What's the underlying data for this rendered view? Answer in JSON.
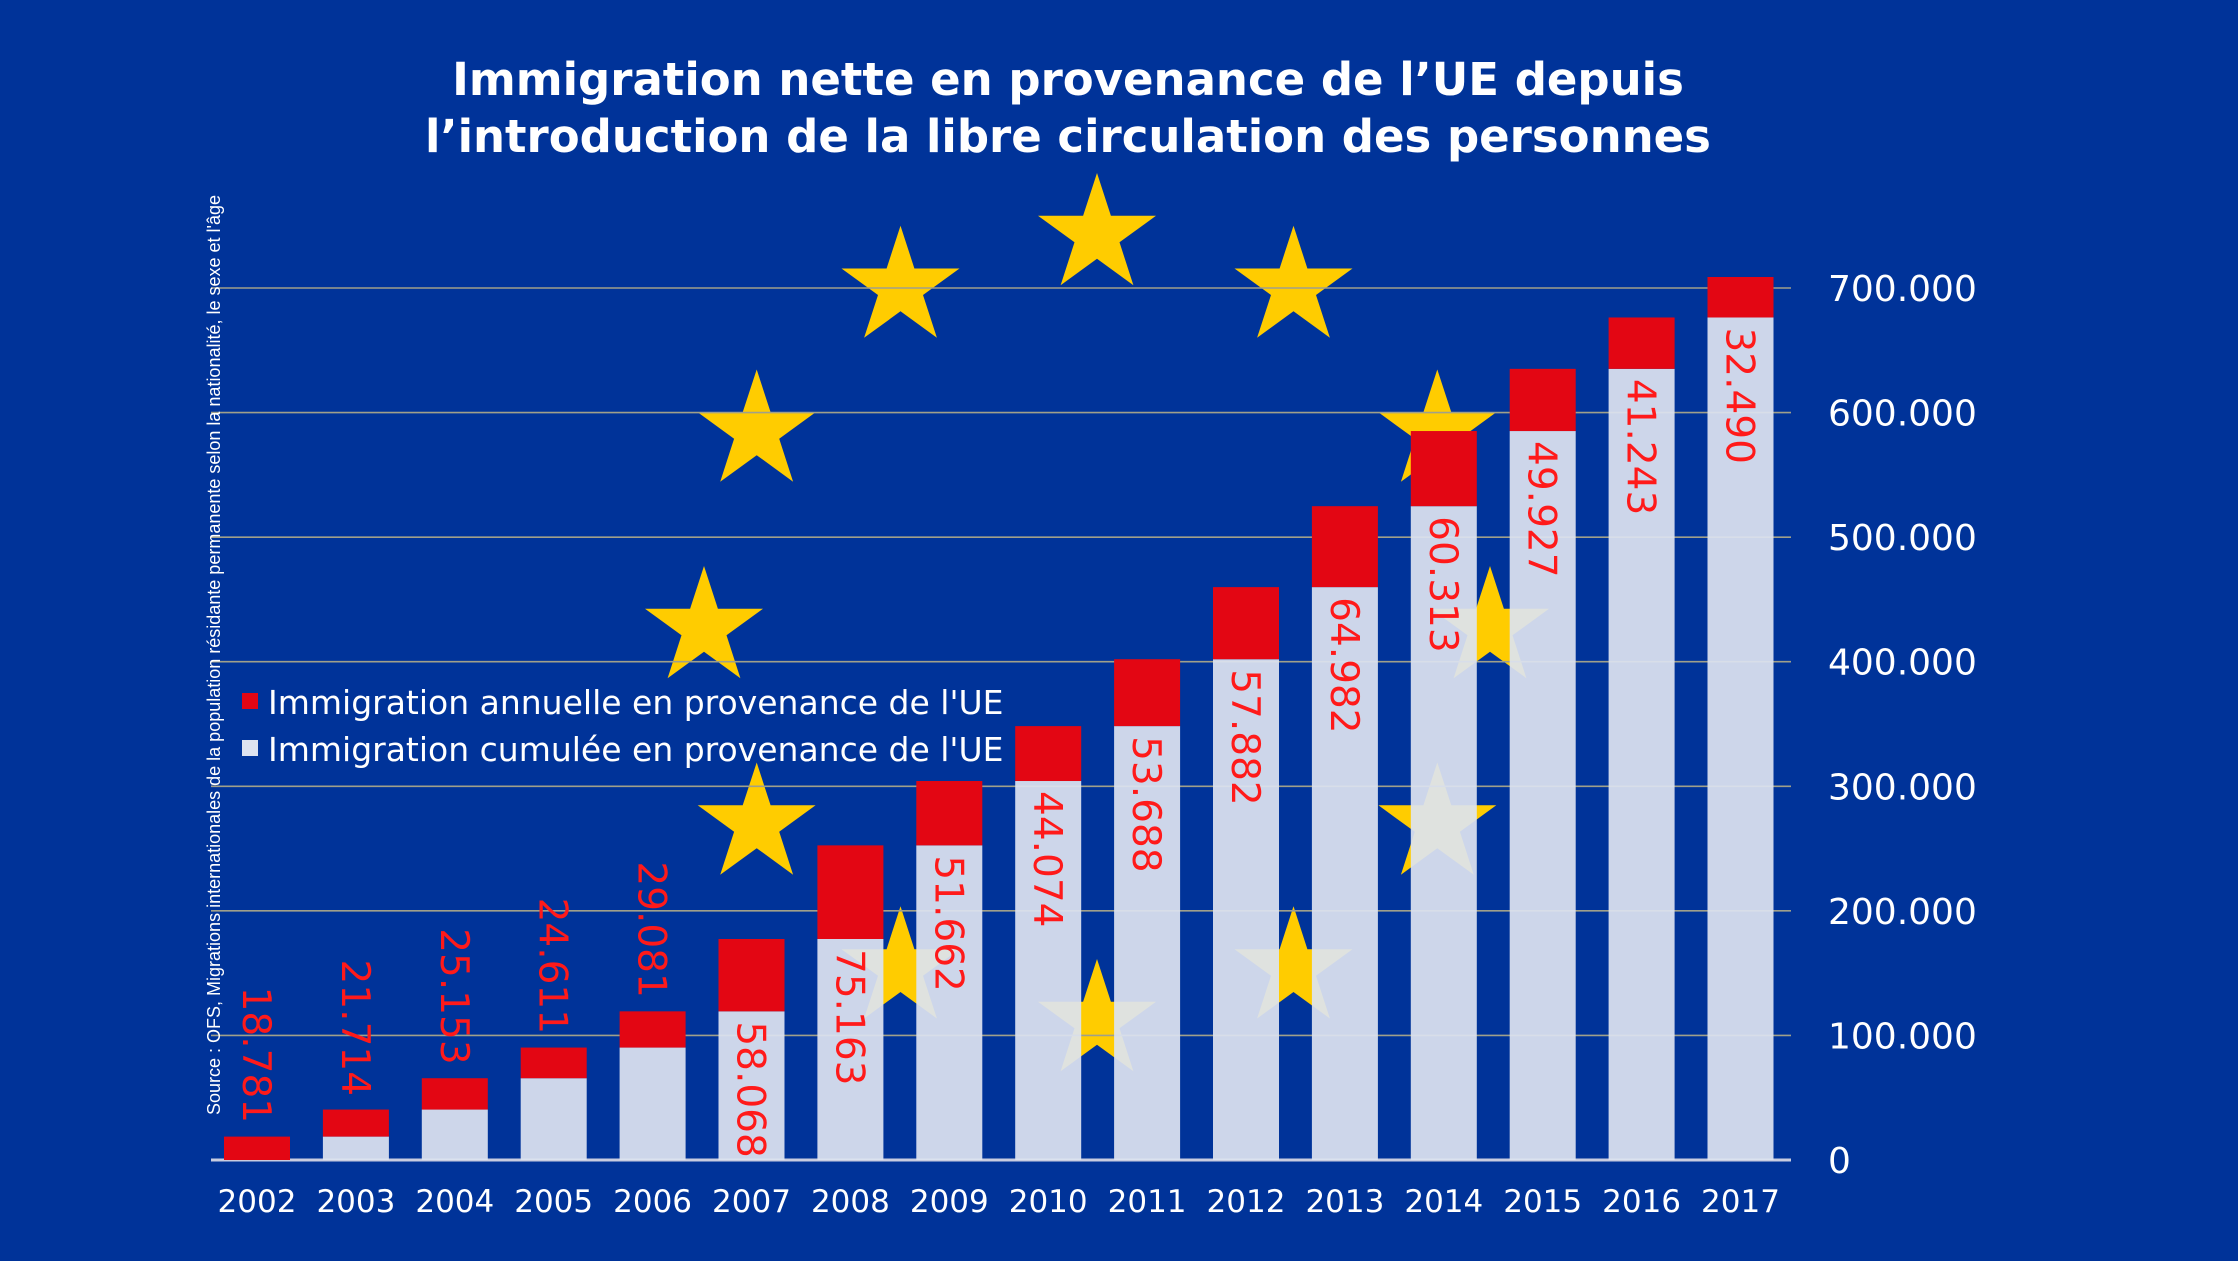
{
  "colors": {
    "background": "#003399",
    "annual": "#e30613",
    "cumulative": "#dde3f0",
    "stars": "#ffcc00",
    "value_labels": "#ff1a1a",
    "gridlines": "#a0a08a"
  },
  "chart_data": {
    "type": "bar",
    "stacked": true,
    "title": [
      "Immigration nette en provenance de l’UE depuis",
      "l’introduction de la libre circulation des personnes"
    ],
    "source": "Source : OFS, Migrations internationales de la population résidante permanente selon la nationalité, le sexe et l'âge",
    "categories": [
      "2002",
      "2003",
      "2004",
      "2005",
      "2006",
      "2007",
      "2008",
      "2009",
      "2010",
      "2011",
      "2012",
      "2013",
      "2014",
      "2015",
      "2016",
      "2017"
    ],
    "series": [
      {
        "name": "Immigration cumulée en provenance de l'UE",
        "color": "#dde3f0",
        "values": [
          0,
          18781,
          40495,
          65648,
          90259,
          119340,
          177408,
          252571,
          304233,
          348307,
          401995,
          459877,
          524859,
          585172,
          635099,
          676342
        ]
      },
      {
        "name": "Immigration annuelle en provenance de l'UE",
        "color": "#e30613",
        "values": [
          18781,
          21714,
          25153,
          24611,
          29081,
          58068,
          75163,
          51662,
          44074,
          53688,
          57882,
          64982,
          60313,
          49927,
          41243,
          32490
        ]
      }
    ],
    "data_labels": [
      "18.781",
      "21.714",
      "25.153",
      "24.611",
      "29.081",
      "58.068",
      "75.163",
      "51.662",
      "44.074",
      "53.688",
      "57.882",
      "64.982",
      "60.313",
      "49.927",
      "41.243",
      "32.490"
    ],
    "y_ticks": [
      0,
      100000,
      200000,
      300000,
      400000,
      500000,
      600000,
      700000
    ],
    "y_tick_labels": [
      "0",
      "100.000",
      "200.000",
      "300.000",
      "400.000",
      "500.000",
      "600.000",
      "700.000"
    ],
    "ylim": [
      0,
      700000
    ],
    "y_axis_side": "right",
    "grid": true,
    "legend_position": "center-left",
    "background_decoration": "EU flag circle of 12 stars"
  }
}
